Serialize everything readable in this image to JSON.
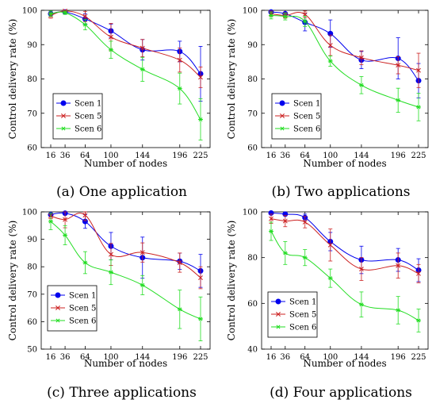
{
  "chart_data": [
    {
      "type": "line",
      "caption": "(a) One application",
      "xlabel": "Number of nodes",
      "ylabel": "Control delivery rate (%)",
      "x": [
        16,
        36,
        64,
        100,
        144,
        196,
        225
      ],
      "x_tick_labels": [
        "16",
        "36",
        "64",
        "100",
        "144",
        "196",
        "225"
      ],
      "ylim": [
        60,
        100
      ],
      "y_ticks": [
        60,
        70,
        80,
        90,
        100
      ],
      "legend_position": "bottom-left",
      "series": [
        {
          "name": "Scen 1",
          "color": "#0000ee",
          "marker": "circle",
          "values": [
            99.0,
            99.5,
            97.5,
            94.0,
            88.5,
            88.0,
            81.5
          ],
          "errors": [
            0.5,
            0.4,
            1.5,
            2.0,
            3.0,
            3.0,
            8.0
          ]
        },
        {
          "name": "Scen 5",
          "color": "#cc2222",
          "marker": "x",
          "values": [
            98.5,
            99.8,
            98.2,
            92.2,
            89.0,
            85.5,
            80.5
          ],
          "errors": [
            0.8,
            0.3,
            1.5,
            4.0,
            2.5,
            3.5,
            3.0
          ]
        },
        {
          "name": "Scen 6",
          "color": "#22dd22",
          "marker": "star",
          "values": [
            99.0,
            99.3,
            95.8,
            88.5,
            82.8,
            77.2,
            68.2
          ],
          "errors": [
            0.8,
            0.5,
            1.5,
            2.5,
            3.5,
            4.5,
            6.0
          ]
        }
      ]
    },
    {
      "type": "line",
      "caption": "(b) Two applications",
      "xlabel": "Number of nodes",
      "ylabel": "Control delivery rate (%)",
      "x": [
        16,
        36,
        64,
        100,
        144,
        196,
        225
      ],
      "x_tick_labels": [
        "16",
        "36",
        "64",
        "100",
        "144",
        "196",
        "225"
      ],
      "ylim": [
        60,
        100
      ],
      "y_ticks": [
        60,
        70,
        80,
        90,
        100
      ],
      "legend_position": "bottom-left",
      "series": [
        {
          "name": "Scen 1",
          "color": "#0000ee",
          "marker": "circle",
          "values": [
            99.5,
            99.0,
            96.5,
            93.2,
            85.5,
            86.0,
            79.5
          ],
          "errors": [
            0.5,
            0.4,
            2.5,
            4.0,
            2.5,
            6.0,
            5.0
          ]
        },
        {
          "name": "Scen 5",
          "color": "#cc2222",
          "marker": "x",
          "values": [
            99.0,
            98.5,
            98.8,
            89.8,
            86.2,
            84.0,
            82.5
          ],
          "errors": [
            0.8,
            0.8,
            1.0,
            3.0,
            2.0,
            2.5,
            5.0
          ]
        },
        {
          "name": "Scen 6",
          "color": "#22dd22",
          "marker": "star",
          "values": [
            98.5,
            98.2,
            96.8,
            85.2,
            78.2,
            73.8,
            71.8
          ],
          "errors": [
            1.0,
            1.0,
            1.5,
            1.5,
            2.5,
            3.5,
            4.0
          ]
        }
      ]
    },
    {
      "type": "line",
      "caption": "(c) Three applications",
      "xlabel": "Number of nodes",
      "ylabel": "Control delivery rate (%)",
      "x": [
        16,
        36,
        64,
        100,
        144,
        196,
        225
      ],
      "x_tick_labels": [
        "16",
        "36",
        "64",
        "100",
        "144",
        "196",
        "225"
      ],
      "ylim": [
        50,
        100
      ],
      "y_ticks": [
        50,
        60,
        70,
        80,
        90,
        100
      ],
      "legend_position": "bottom-left",
      "series": [
        {
          "name": "Scen 1",
          "color": "#0000ee",
          "marker": "circle",
          "values": [
            99.0,
            99.5,
            96.5,
            87.5,
            83.3,
            82.0,
            78.5
          ],
          "errors": [
            0.5,
            0.5,
            2.5,
            5.0,
            7.5,
            3.0,
            6.0
          ]
        },
        {
          "name": "Scen 5",
          "color": "#cc2222",
          "marker": "x",
          "values": [
            98.5,
            97.2,
            98.8,
            84.5,
            85.2,
            81.5,
            76.0
          ],
          "errors": [
            1.0,
            3.0,
            2.0,
            4.0,
            3.5,
            3.5,
            4.0
          ]
        },
        {
          "name": "Scen 6",
          "color": "#22dd22",
          "marker": "star",
          "values": [
            96.5,
            91.5,
            81.5,
            78.0,
            73.3,
            64.5,
            61.0
          ],
          "errors": [
            3.0,
            3.5,
            4.0,
            4.5,
            3.5,
            7.0,
            8.0
          ]
        }
      ]
    },
    {
      "type": "line",
      "caption": "(d) Four applications",
      "xlabel": "Number of nodes",
      "ylabel": "Control delivery rate (%)",
      "x": [
        16,
        36,
        64,
        100,
        144,
        196,
        225
      ],
      "x_tick_labels": [
        "16",
        "36",
        "64",
        "100",
        "144",
        "196",
        "225"
      ],
      "ylim": [
        40,
        100
      ],
      "y_ticks": [
        40,
        60,
        80,
        100
      ],
      "legend_position": "top-left",
      "series": [
        {
          "name": "Scen 1",
          "color": "#0000ee",
          "marker": "circle",
          "values": [
            99.5,
            99.0,
            97.5,
            87.0,
            79.0,
            79.0,
            74.5
          ],
          "errors": [
            0.5,
            0.5,
            1.5,
            4.0,
            6.0,
            5.0,
            5.0
          ]
        },
        {
          "name": "Scen 5",
          "color": "#cc2222",
          "marker": "x",
          "values": [
            97.0,
            96.0,
            95.5,
            85.5,
            75.0,
            76.5,
            73.0
          ],
          "errors": [
            2.0,
            2.5,
            2.5,
            7.0,
            5.0,
            5.5,
            4.0
          ]
        },
        {
          "name": "Scen 6",
          "color": "#22dd22",
          "marker": "star",
          "values": [
            91.5,
            82.0,
            80.0,
            71.0,
            59.5,
            57.0,
            52.5
          ],
          "errors": [
            4.0,
            5.0,
            3.5,
            4.0,
            5.5,
            6.0,
            5.0
          ]
        }
      ]
    }
  ]
}
